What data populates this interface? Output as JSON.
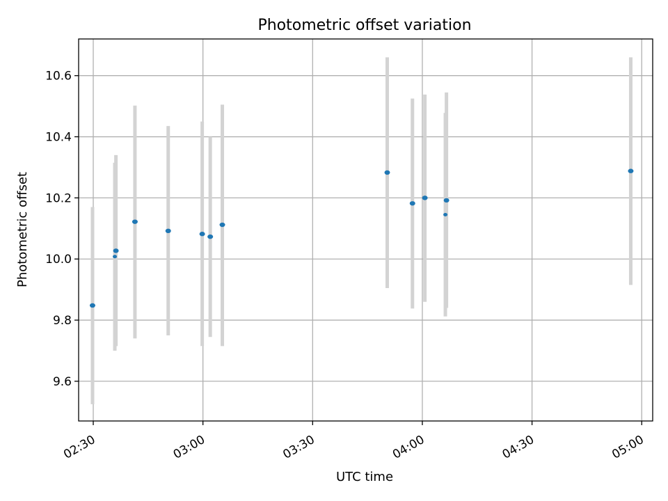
{
  "chart_data": {
    "type": "scatter",
    "title": "Photometric offset variation",
    "xlabel": "UTC time",
    "ylabel": "Photometric offset",
    "grid": true,
    "xlim": [
      "02:26",
      "05:03"
    ],
    "ylim": [
      9.47,
      10.72
    ],
    "x_ticks": [
      "02:30",
      "03:00",
      "03:30",
      "04:00",
      "04:30",
      "05:00"
    ],
    "y_ticks": [
      "9.6",
      "9.8",
      "10.0",
      "10.2",
      "10.4",
      "10.6"
    ],
    "colors": {
      "point": "#1f77b4",
      "errorbar": "#d3d3d3",
      "grid": "#b0b0b0"
    },
    "points": [
      {
        "x": "02:29.8",
        "y": 9.848,
        "yerr_low": 9.525,
        "yerr_high": 10.17,
        "size": "large"
      },
      {
        "x": "02:35.9",
        "y": 10.008,
        "yerr_low": 9.7,
        "yerr_high": 10.315,
        "size": "small"
      },
      {
        "x": "02:36.2",
        "y": 10.027,
        "yerr_low": 9.715,
        "yerr_high": 10.34,
        "size": "large"
      },
      {
        "x": "02:41.4",
        "y": 10.122,
        "yerr_low": 9.74,
        "yerr_high": 10.502,
        "size": "large"
      },
      {
        "x": "02:50.5",
        "y": 10.092,
        "yerr_low": 9.75,
        "yerr_high": 10.435,
        "size": "large"
      },
      {
        "x": "02:59.8",
        "y": 10.082,
        "yerr_low": 9.715,
        "yerr_high": 10.45,
        "size": "large"
      },
      {
        "x": "03:02.0",
        "y": 10.073,
        "yerr_low": 9.745,
        "yerr_high": 10.4,
        "size": "large"
      },
      {
        "x": "03:05.3",
        "y": 10.112,
        "yerr_low": 9.715,
        "yerr_high": 10.505,
        "size": "large"
      },
      {
        "x": "03:50.4",
        "y": 10.283,
        "yerr_low": 9.905,
        "yerr_high": 10.66,
        "size": "large"
      },
      {
        "x": "03:57.3",
        "y": 10.182,
        "yerr_low": 9.838,
        "yerr_high": 10.525,
        "size": "large"
      },
      {
        "x": "04:00.7",
        "y": 10.2,
        "yerr_low": 9.86,
        "yerr_high": 10.538,
        "size": "large"
      },
      {
        "x": "04:06.3",
        "y": 10.145,
        "yerr_low": 9.812,
        "yerr_high": 10.478,
        "size": "small"
      },
      {
        "x": "04:06.6",
        "y": 10.192,
        "yerr_low": 9.84,
        "yerr_high": 10.545,
        "size": "large"
      },
      {
        "x": "04:57.0",
        "y": 10.288,
        "yerr_low": 9.915,
        "yerr_high": 10.66,
        "size": "large"
      }
    ]
  }
}
